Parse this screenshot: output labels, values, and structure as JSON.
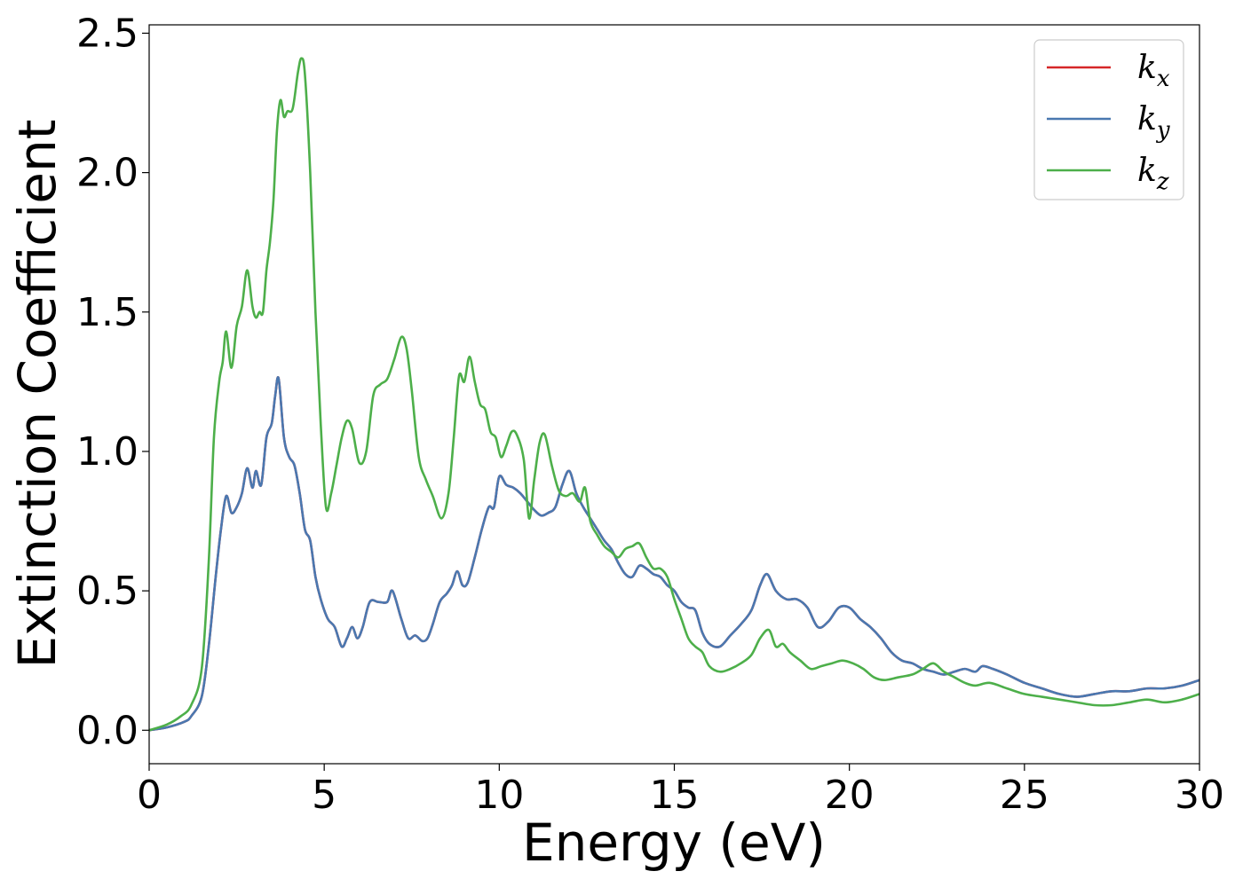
{
  "chart_data": {
    "type": "line",
    "title": "",
    "xlabel": "Energy (eV)",
    "ylabel": "Extinction Coefficient",
    "xlim": [
      0,
      30
    ],
    "ylim": [
      -0.12,
      2.53
    ],
    "xticks": [
      0,
      5,
      10,
      15,
      20,
      25,
      30
    ],
    "xtick_labels": [
      "0",
      "5",
      "10",
      "15",
      "20",
      "25",
      "30"
    ],
    "yticks": [
      0.0,
      0.5,
      1.0,
      1.5,
      2.0,
      2.5
    ],
    "ytick_labels": [
      "0.0",
      "0.5",
      "1.0",
      "1.5",
      "2.0",
      "2.5"
    ],
    "grid": false,
    "legend_position": "top-right",
    "series": [
      {
        "name": "k_x",
        "label_base": "k",
        "label_sub": "x",
        "color": "#d62728",
        "x": [
          0,
          0.5,
          1.0,
          1.2,
          1.5,
          1.7,
          1.9,
          2.05,
          2.2,
          2.35,
          2.5,
          2.65,
          2.8,
          2.95,
          3.05,
          3.2,
          3.35,
          3.5,
          3.6,
          3.7,
          3.85,
          4.0,
          4.15,
          4.3,
          4.45,
          4.6,
          4.75,
          4.9,
          5.1,
          5.3,
          5.5,
          5.65,
          5.8,
          5.95,
          6.1,
          6.3,
          6.55,
          6.8,
          6.95,
          7.2,
          7.4,
          7.6,
          7.8,
          7.95,
          8.1,
          8.3,
          8.5,
          8.65,
          8.8,
          8.95,
          9.1,
          9.3,
          9.5,
          9.7,
          9.85,
          10.0,
          10.2,
          10.4,
          10.6,
          10.8,
          11.0,
          11.2,
          11.4,
          11.6,
          11.8,
          12.0,
          12.2,
          12.4,
          12.6,
          12.8,
          13.0,
          13.2,
          13.4,
          13.6,
          13.8,
          14.0,
          14.2,
          14.4,
          14.6,
          14.8,
          15.0,
          15.2,
          15.4,
          15.6,
          15.8,
          16.0,
          16.3,
          16.6,
          16.9,
          17.2,
          17.45,
          17.65,
          17.9,
          18.2,
          18.5,
          18.8,
          19.1,
          19.4,
          19.7,
          20.0,
          20.3,
          20.6,
          20.9,
          21.2,
          21.5,
          21.8,
          22.1,
          22.4,
          22.7,
          23.0,
          23.3,
          23.6,
          23.8,
          24.1,
          24.5,
          25.0,
          25.5,
          26.0,
          26.5,
          27.0,
          27.5,
          28.0,
          28.5,
          29.0,
          29.5,
          30.0
        ],
        "y": [
          0.0,
          0.01,
          0.03,
          0.05,
          0.12,
          0.3,
          0.55,
          0.72,
          0.84,
          0.78,
          0.8,
          0.85,
          0.94,
          0.87,
          0.93,
          0.88,
          1.05,
          1.1,
          1.2,
          1.26,
          1.05,
          0.98,
          0.95,
          0.85,
          0.72,
          0.68,
          0.55,
          0.47,
          0.4,
          0.37,
          0.3,
          0.33,
          0.37,
          0.33,
          0.37,
          0.46,
          0.46,
          0.46,
          0.5,
          0.4,
          0.33,
          0.34,
          0.32,
          0.33,
          0.38,
          0.46,
          0.49,
          0.52,
          0.57,
          0.52,
          0.53,
          0.62,
          0.72,
          0.8,
          0.8,
          0.91,
          0.88,
          0.87,
          0.85,
          0.82,
          0.79,
          0.77,
          0.78,
          0.8,
          0.88,
          0.93,
          0.85,
          0.8,
          0.76,
          0.72,
          0.68,
          0.65,
          0.6,
          0.56,
          0.55,
          0.59,
          0.58,
          0.56,
          0.55,
          0.52,
          0.5,
          0.46,
          0.44,
          0.43,
          0.35,
          0.31,
          0.3,
          0.34,
          0.38,
          0.43,
          0.52,
          0.56,
          0.5,
          0.47,
          0.47,
          0.44,
          0.37,
          0.39,
          0.44,
          0.44,
          0.4,
          0.37,
          0.33,
          0.28,
          0.25,
          0.24,
          0.22,
          0.21,
          0.2,
          0.21,
          0.22,
          0.21,
          0.23,
          0.22,
          0.2,
          0.17,
          0.15,
          0.13,
          0.12,
          0.13,
          0.14,
          0.14,
          0.15,
          0.15,
          0.16,
          0.18
        ]
      },
      {
        "name": "k_y",
        "label_base": "k",
        "label_sub": "y",
        "color": "#4a78b0",
        "x": [
          0,
          0.5,
          1.0,
          1.2,
          1.5,
          1.7,
          1.9,
          2.05,
          2.2,
          2.35,
          2.5,
          2.65,
          2.8,
          2.95,
          3.05,
          3.2,
          3.35,
          3.5,
          3.6,
          3.7,
          3.85,
          4.0,
          4.15,
          4.3,
          4.45,
          4.6,
          4.75,
          4.9,
          5.1,
          5.3,
          5.5,
          5.65,
          5.8,
          5.95,
          6.1,
          6.3,
          6.55,
          6.8,
          6.95,
          7.2,
          7.4,
          7.6,
          7.8,
          7.95,
          8.1,
          8.3,
          8.5,
          8.65,
          8.8,
          8.95,
          9.1,
          9.3,
          9.5,
          9.7,
          9.85,
          10.0,
          10.2,
          10.4,
          10.6,
          10.8,
          11.0,
          11.2,
          11.4,
          11.6,
          11.8,
          12.0,
          12.2,
          12.4,
          12.6,
          12.8,
          13.0,
          13.2,
          13.4,
          13.6,
          13.8,
          14.0,
          14.2,
          14.4,
          14.6,
          14.8,
          15.0,
          15.2,
          15.4,
          15.6,
          15.8,
          16.0,
          16.3,
          16.6,
          16.9,
          17.2,
          17.45,
          17.65,
          17.9,
          18.2,
          18.5,
          18.8,
          19.1,
          19.4,
          19.7,
          20.0,
          20.3,
          20.6,
          20.9,
          21.2,
          21.5,
          21.8,
          22.1,
          22.4,
          22.7,
          23.0,
          23.3,
          23.6,
          23.8,
          24.1,
          24.5,
          25.0,
          25.5,
          26.0,
          26.5,
          27.0,
          27.5,
          28.0,
          28.5,
          29.0,
          29.5,
          30.0
        ],
        "y": [
          0.0,
          0.01,
          0.03,
          0.05,
          0.12,
          0.3,
          0.55,
          0.72,
          0.84,
          0.78,
          0.8,
          0.85,
          0.94,
          0.87,
          0.93,
          0.88,
          1.05,
          1.1,
          1.2,
          1.26,
          1.05,
          0.98,
          0.95,
          0.85,
          0.72,
          0.68,
          0.55,
          0.47,
          0.4,
          0.37,
          0.3,
          0.33,
          0.37,
          0.33,
          0.37,
          0.46,
          0.46,
          0.46,
          0.5,
          0.4,
          0.33,
          0.34,
          0.32,
          0.33,
          0.38,
          0.46,
          0.49,
          0.52,
          0.57,
          0.52,
          0.53,
          0.62,
          0.72,
          0.8,
          0.8,
          0.91,
          0.88,
          0.87,
          0.85,
          0.82,
          0.79,
          0.77,
          0.78,
          0.8,
          0.88,
          0.93,
          0.85,
          0.8,
          0.76,
          0.72,
          0.68,
          0.65,
          0.6,
          0.56,
          0.55,
          0.59,
          0.58,
          0.56,
          0.55,
          0.52,
          0.5,
          0.46,
          0.44,
          0.43,
          0.35,
          0.31,
          0.3,
          0.34,
          0.38,
          0.43,
          0.52,
          0.56,
          0.5,
          0.47,
          0.47,
          0.44,
          0.37,
          0.39,
          0.44,
          0.44,
          0.4,
          0.37,
          0.33,
          0.28,
          0.25,
          0.24,
          0.22,
          0.21,
          0.2,
          0.21,
          0.22,
          0.21,
          0.23,
          0.22,
          0.2,
          0.17,
          0.15,
          0.13,
          0.12,
          0.13,
          0.14,
          0.14,
          0.15,
          0.15,
          0.16,
          0.18
        ]
      },
      {
        "name": "k_z",
        "label_base": "k",
        "label_sub": "z",
        "color": "#4daf4a",
        "x": [
          0,
          0.5,
          0.9,
          1.2,
          1.5,
          1.7,
          1.85,
          2.0,
          2.1,
          2.2,
          2.35,
          2.5,
          2.65,
          2.8,
          2.95,
          3.05,
          3.15,
          3.25,
          3.35,
          3.45,
          3.55,
          3.65,
          3.75,
          3.85,
          3.95,
          4.1,
          4.25,
          4.35,
          4.45,
          4.6,
          4.75,
          4.9,
          5.05,
          5.2,
          5.35,
          5.5,
          5.65,
          5.8,
          6.0,
          6.2,
          6.4,
          6.6,
          6.8,
          7.0,
          7.2,
          7.35,
          7.5,
          7.7,
          7.9,
          8.1,
          8.35,
          8.55,
          8.7,
          8.85,
          9.0,
          9.15,
          9.3,
          9.45,
          9.6,
          9.75,
          9.9,
          10.05,
          10.2,
          10.35,
          10.5,
          10.7,
          10.85,
          11.0,
          11.15,
          11.3,
          11.5,
          11.7,
          11.9,
          12.1,
          12.3,
          12.45,
          12.6,
          12.8,
          13.0,
          13.2,
          13.4,
          13.6,
          13.8,
          14.0,
          14.2,
          14.4,
          14.6,
          14.8,
          15.0,
          15.2,
          15.4,
          15.6,
          15.8,
          16.0,
          16.3,
          16.6,
          16.9,
          17.2,
          17.45,
          17.7,
          17.9,
          18.1,
          18.3,
          18.6,
          18.9,
          19.2,
          19.5,
          19.8,
          20.1,
          20.4,
          20.7,
          21.0,
          21.4,
          21.8,
          22.1,
          22.4,
          22.7,
          23.0,
          23.3,
          23.6,
          24.0,
          24.5,
          25.0,
          25.5,
          26.0,
          26.5,
          27.0,
          27.5,
          28.0,
          28.5,
          29.0,
          29.5,
          30.0
        ],
        "y": [
          0.0,
          0.02,
          0.05,
          0.09,
          0.22,
          0.6,
          1.05,
          1.25,
          1.32,
          1.43,
          1.3,
          1.45,
          1.52,
          1.65,
          1.52,
          1.48,
          1.5,
          1.5,
          1.65,
          1.75,
          1.9,
          2.15,
          2.26,
          2.2,
          2.22,
          2.23,
          2.36,
          2.41,
          2.35,
          2.0,
          1.5,
          1.1,
          0.8,
          0.85,
          0.95,
          1.05,
          1.11,
          1.08,
          0.96,
          1.0,
          1.2,
          1.24,
          1.26,
          1.33,
          1.41,
          1.37,
          1.22,
          0.98,
          0.9,
          0.84,
          0.76,
          0.85,
          1.05,
          1.27,
          1.25,
          1.34,
          1.25,
          1.17,
          1.15,
          1.07,
          1.05,
          0.98,
          1.02,
          1.07,
          1.06,
          0.97,
          0.76,
          0.9,
          1.03,
          1.06,
          0.95,
          0.86,
          0.84,
          0.85,
          0.82,
          0.87,
          0.75,
          0.7,
          0.66,
          0.64,
          0.62,
          0.65,
          0.66,
          0.67,
          0.62,
          0.58,
          0.58,
          0.55,
          0.47,
          0.4,
          0.33,
          0.3,
          0.28,
          0.23,
          0.21,
          0.22,
          0.24,
          0.27,
          0.33,
          0.36,
          0.3,
          0.31,
          0.28,
          0.25,
          0.22,
          0.23,
          0.24,
          0.25,
          0.24,
          0.22,
          0.19,
          0.18,
          0.19,
          0.2,
          0.22,
          0.24,
          0.21,
          0.19,
          0.17,
          0.16,
          0.17,
          0.15,
          0.13,
          0.12,
          0.11,
          0.1,
          0.09,
          0.09,
          0.1,
          0.11,
          0.1,
          0.11,
          0.13
        ]
      }
    ]
  }
}
